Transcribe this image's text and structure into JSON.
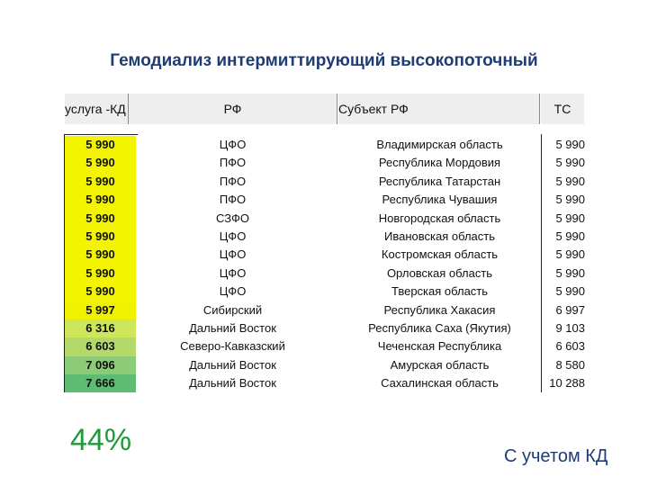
{
  "title": "Гемодиализ интермиттирующий высокопоточный",
  "headers": {
    "col1": "услуга -КД",
    "col2": "РФ",
    "col3": "Субъект РФ",
    "col4": "ТС"
  },
  "rows": [
    {
      "kd": "5 990",
      "district": "ЦФО",
      "region": "Владимирская область",
      "ts": "5 990",
      "color": "#f3f500"
    },
    {
      "kd": "5 990",
      "district": "ПФО",
      "region": "Республика Мордовия",
      "ts": "5 990",
      "color": "#f3f500"
    },
    {
      "kd": "5 990",
      "district": "ПФО",
      "region": "Республика Татарстан",
      "ts": "5 990",
      "color": "#f3f500"
    },
    {
      "kd": "5 990",
      "district": "ПФО",
      "region": "Республика Чувашия",
      "ts": "5 990",
      "color": "#f3f500"
    },
    {
      "kd": "5 990",
      "district": "СЗФО",
      "region": "Новгородская область",
      "ts": "5 990",
      "color": "#f3f500"
    },
    {
      "kd": "5 990",
      "district": "ЦФО",
      "region": "Ивановская область",
      "ts": "5 990",
      "color": "#f3f500"
    },
    {
      "kd": "5 990",
      "district": "ЦФО",
      "region": "Костромская область",
      "ts": "5 990",
      "color": "#f3f500"
    },
    {
      "kd": "5 990",
      "district": "ЦФО",
      "region": "Орловская область",
      "ts": "5 990",
      "color": "#f3f500"
    },
    {
      "kd": "5 990",
      "district": "ЦФО",
      "region": "Тверская область",
      "ts": "5 990",
      "color": "#f3f500"
    },
    {
      "kd": "5 997",
      "district": "Сибирский",
      "region": "Республика Хакасия",
      "ts": "6 997",
      "color": "#eef200"
    },
    {
      "kd": "6 316",
      "district": "Дальний Восток",
      "region": "Республика Саха (Якутия)",
      "ts": "9 103",
      "color": "#cde65a"
    },
    {
      "kd": "6 603",
      "district": "Северо-Кавказский",
      "region": "Чеченская Республика",
      "ts": "6 603",
      "color": "#b3d96b"
    },
    {
      "kd": "7 096",
      "district": "Дальний Восток",
      "region": "Амурская область",
      "ts": "8 580",
      "color": "#8ccb78"
    },
    {
      "kd": "7 666",
      "district": "Дальний Восток",
      "region": "Сахалинская область",
      "ts": "10 288",
      "color": "#5dbb74"
    }
  ],
  "percent": "44%",
  "footnote": "С учетом КД"
}
